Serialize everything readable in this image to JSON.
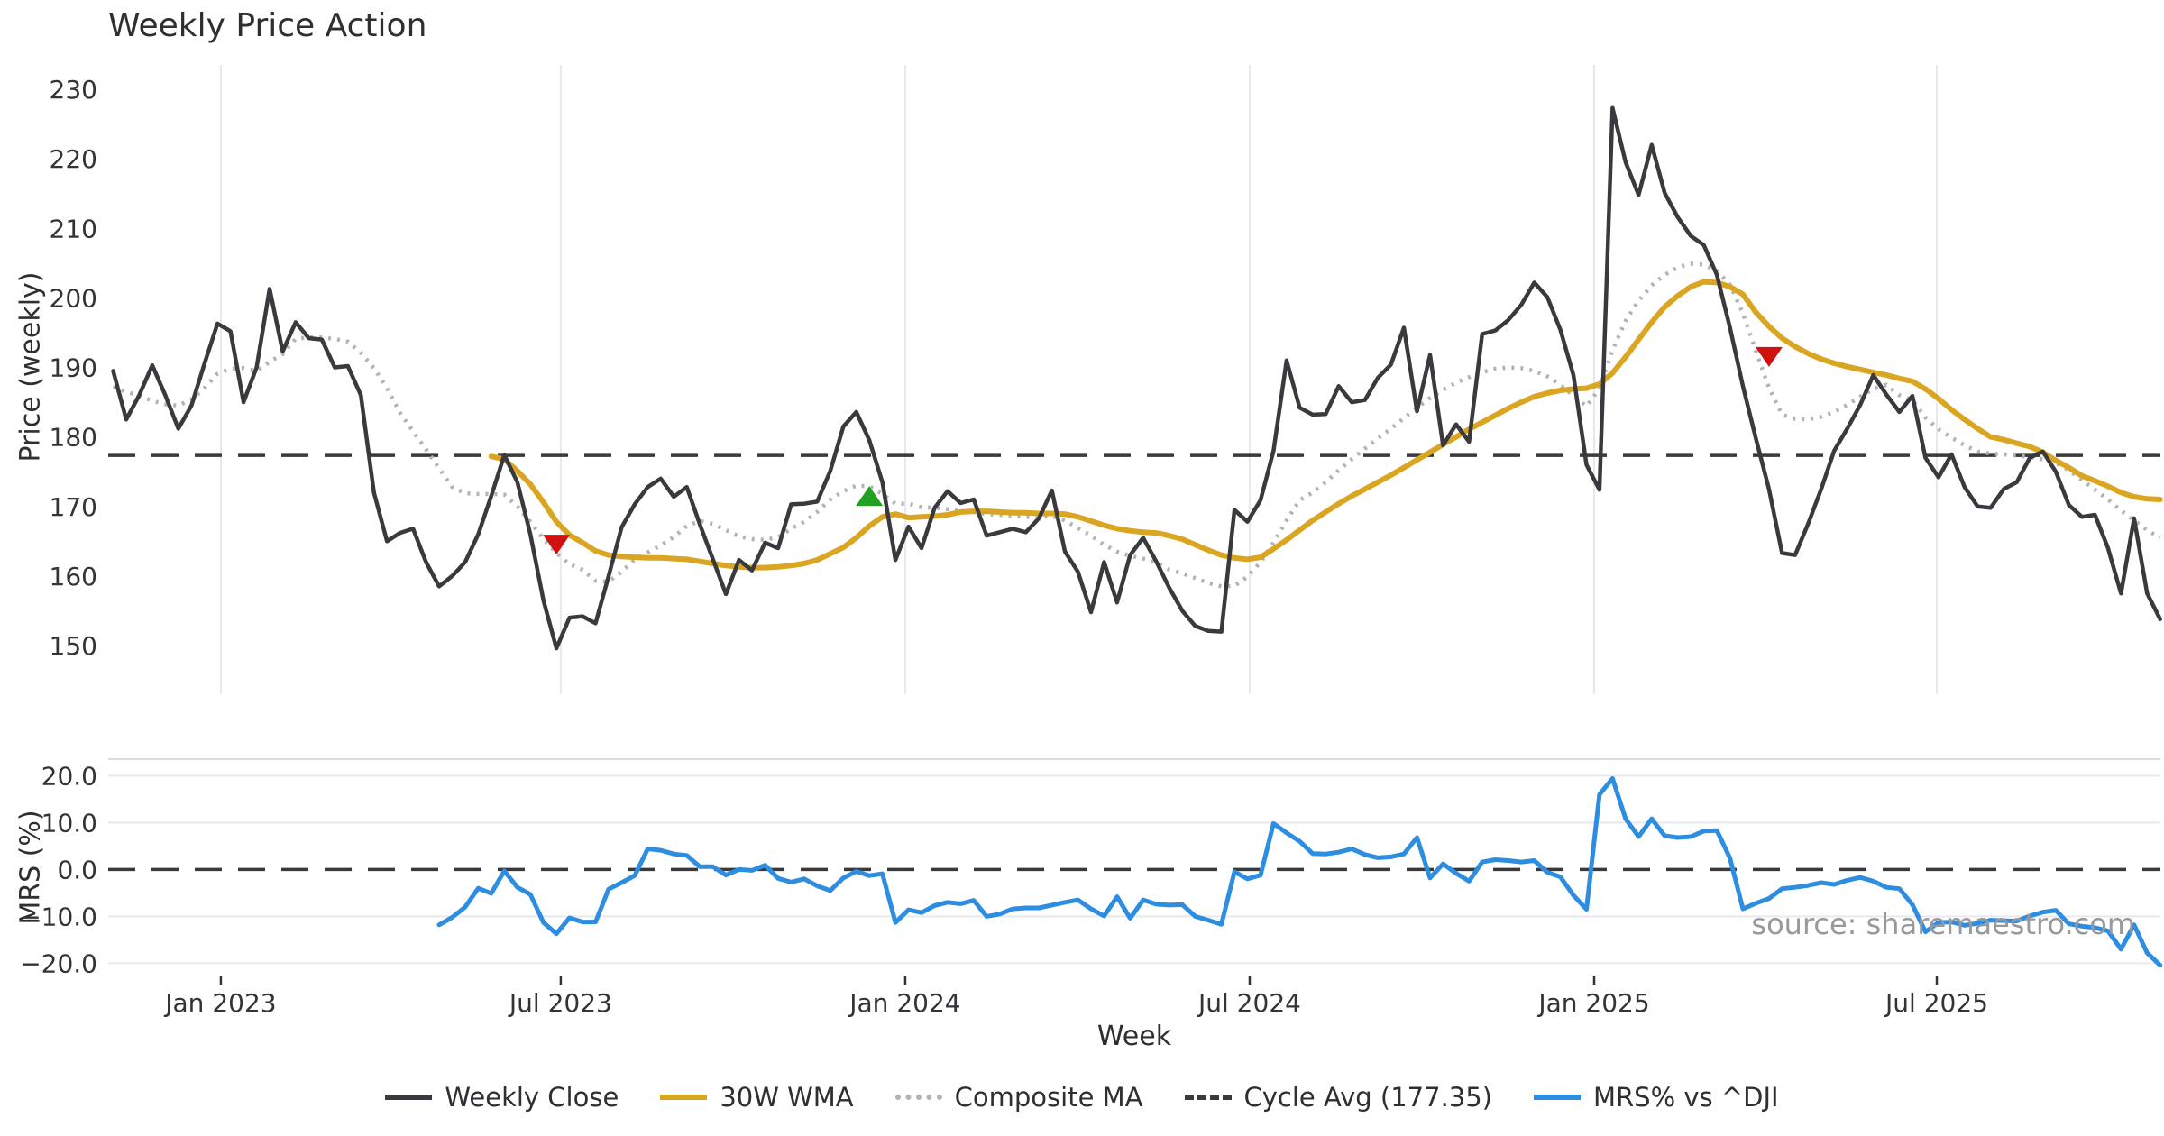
{
  "title": "Weekly Price Action",
  "xlabel": "Week",
  "source_text": "source: sharemaestro.com",
  "price_panel": {
    "ylabel": "Price (weekly)",
    "y_ticks": [
      230,
      220,
      210,
      200,
      190,
      180,
      170,
      160,
      150
    ]
  },
  "mrs_panel": {
    "ylabel": "MRS (%)",
    "y_ticks": [
      {
        "label": "20.0",
        "value": 20
      },
      {
        "label": "10.0",
        "value": 10
      },
      {
        "label": "0.0",
        "value": 0
      },
      {
        "label": "−10.0",
        "value": -10
      },
      {
        "label": "−20.0",
        "value": -20
      }
    ]
  },
  "x_ticks": [
    {
      "label": "Jan 2023",
      "week": 8.26
    },
    {
      "label": "Jul 2023",
      "week": 34.33
    },
    {
      "label": "Jan 2024",
      "week": 60.75
    },
    {
      "label": "Jul 2024",
      "week": 87.17
    },
    {
      "label": "Jan 2025",
      "week": 113.59
    },
    {
      "label": "Jul 2025",
      "week": 139.87
    }
  ],
  "legend": [
    {
      "label": "Weekly Close",
      "style": "solid",
      "color": "#3a3a3e"
    },
    {
      "label": "30W WMA",
      "style": "solid",
      "color": "#daa520"
    },
    {
      "label": "Composite MA",
      "style": "dotted",
      "color": "#b3b3b3"
    },
    {
      "label": "Cycle Avg (177.35)",
      "style": "dashed",
      "color": "#3a3a3a"
    },
    {
      "label": "MRS% vs ^DJI",
      "style": "solid",
      "color": "#2d8de0"
    }
  ],
  "colors": {
    "close": "#3a3a3e",
    "wma": "#daa520",
    "composite": "#b3b3b3",
    "cycle_avg": "#3a3a3a",
    "mrs": "#2d8de0",
    "grid": "#e9e9ed",
    "spine": "#dadade",
    "marker_sell": "#cf1110",
    "marker_buy": "#21a121",
    "tick_text": "#333338"
  },
  "chart_data": {
    "type": "line",
    "x_unit": "week_index",
    "n_weeks": 158,
    "price_ylim": [
      143.0,
      233.8
    ],
    "mrs_ylim": [
      -22.7,
      23.5
    ],
    "cycle_avg_value": 177.35,
    "mrs_zero_line": 0,
    "series": [
      {
        "name": "Weekly Close",
        "panel": "price",
        "style": "solid",
        "color": "#3a3a3e",
        "width": 4.5,
        "start_week": 0,
        "values": [
          189.5,
          182.5,
          186.0,
          190.3,
          186.0,
          181.2,
          184.5,
          190.5,
          196.3,
          195.2,
          185.0,
          190.0,
          201.3,
          192.3,
          196.5,
          194.2,
          194.0,
          190.0,
          190.2,
          186.0,
          172.0,
          165.0,
          166.2,
          166.8,
          162.0,
          158.5,
          160.0,
          162.0,
          166.0,
          171.5,
          177.4,
          173.5,
          166.0,
          156.5,
          149.6,
          154.0,
          154.2,
          153.2,
          160.0,
          167.0,
          170.3,
          172.8,
          174.0,
          171.4,
          172.8,
          167.4,
          162.4,
          157.4,
          162.3,
          160.8,
          164.8,
          164.0,
          170.3,
          170.4,
          170.7,
          175.1,
          181.5,
          183.6,
          179.5,
          173.5,
          162.3,
          167.1,
          164.0,
          169.8,
          172.2,
          170.5,
          171.0,
          165.8,
          166.3,
          166.8,
          166.3,
          168.3,
          172.3,
          163.5,
          160.6,
          154.8,
          162.0,
          156.2,
          163.0,
          165.5,
          162.1,
          158.3,
          155.0,
          152.8,
          152.1,
          152.0,
          169.5,
          167.8,
          170.9,
          178.0,
          191.0,
          184.2,
          183.2,
          183.3,
          187.3,
          185.0,
          185.3,
          188.5,
          190.4,
          195.7,
          183.7,
          191.8,
          178.8,
          181.8,
          179.3,
          194.8,
          195.3,
          196.8,
          199.0,
          202.2,
          200.1,
          195.4,
          188.9,
          176.0,
          172.4,
          227.3,
          219.5,
          214.8,
          222.0,
          215.1,
          211.6,
          208.9,
          207.6,
          203.3,
          195.8,
          187.3,
          179.7,
          172.5,
          163.3,
          163.0,
          167.5,
          172.5,
          178.0,
          181.2,
          184.6,
          188.9,
          186.1,
          183.6,
          185.9,
          177.0,
          174.2,
          177.5,
          172.8,
          170.0,
          169.8,
          172.5,
          173.5,
          177.0,
          177.9,
          175.0,
          170.2,
          168.5,
          168.8,
          164.0,
          157.5,
          168.3,
          157.5,
          153.8
        ]
      },
      {
        "name": "30W WMA",
        "panel": "price",
        "style": "solid",
        "color": "#daa520",
        "width": 6,
        "start_week": 29,
        "values": [
          177.2,
          176.8,
          175.1,
          173.2,
          170.6,
          167.8,
          165.9,
          164.8,
          163.6,
          163.0,
          162.8,
          162.7,
          162.6,
          162.6,
          162.5,
          162.4,
          162.1,
          161.8,
          161.5,
          161.3,
          161.2,
          161.2,
          161.3,
          161.5,
          161.8,
          162.3,
          163.2,
          164.1,
          165.5,
          167.2,
          168.5,
          168.9,
          168.4,
          168.5,
          168.6,
          168.8,
          169.2,
          169.3,
          169.3,
          169.2,
          169.1,
          169.1,
          169.0,
          169.0,
          168.9,
          168.5,
          167.9,
          167.3,
          166.8,
          166.5,
          166.3,
          166.2,
          165.8,
          165.3,
          164.5,
          163.7,
          163.0,
          162.6,
          162.4,
          162.7,
          163.9,
          165.2,
          166.6,
          168.0,
          169.2,
          170.4,
          171.5,
          172.5,
          173.5,
          174.5,
          175.6,
          176.7,
          177.8,
          178.9,
          180.0,
          181.1,
          182.1,
          183.1,
          184.1,
          185.0,
          185.8,
          186.3,
          186.7,
          186.9,
          187.0,
          187.6,
          189.2,
          191.5,
          194.0,
          196.5,
          198.7,
          200.3,
          201.6,
          202.3,
          202.2,
          201.6,
          200.5,
          197.9,
          195.9,
          194.2,
          193.0,
          192.0,
          191.2,
          190.6,
          190.1,
          189.7,
          189.3,
          188.9,
          188.4,
          188.0,
          186.9,
          185.5,
          183.9,
          182.5,
          181.2,
          180.0,
          179.6,
          179.1,
          178.6,
          177.8,
          176.6,
          175.6,
          174.4,
          173.7,
          172.9,
          172.0,
          171.4,
          171.1,
          171.0
        ]
      },
      {
        "name": "Composite MA",
        "panel": "price",
        "style": "dotted",
        "color": "#b3b3b3",
        "width": 4.5,
        "start_week": 0,
        "values": [
          187.2,
          186.5,
          185.9,
          185.2,
          184.7,
          184.5,
          185.4,
          187.0,
          189.1,
          189.8,
          189.9,
          189.5,
          190.8,
          191.9,
          194.1,
          194.3,
          194.3,
          194.1,
          193.7,
          192.1,
          189.9,
          187.0,
          183.5,
          180.8,
          178.2,
          175.5,
          172.8,
          171.9,
          171.8,
          171.8,
          171.7,
          170.0,
          167.8,
          165.3,
          163.3,
          161.7,
          160.9,
          159.3,
          159.2,
          160.6,
          162.4,
          163.4,
          164.4,
          165.6,
          167.2,
          167.9,
          167.5,
          166.6,
          165.7,
          165.3,
          165.2,
          165.6,
          166.8,
          167.8,
          169.2,
          171.0,
          172.2,
          173.0,
          172.9,
          171.8,
          170.4,
          170.4,
          169.9,
          169.8,
          169.6,
          169.3,
          169.2,
          168.9,
          168.8,
          168.6,
          168.5,
          168.5,
          168.6,
          168.0,
          166.9,
          165.8,
          164.5,
          163.5,
          162.9,
          162.5,
          161.9,
          160.9,
          160.4,
          159.7,
          159.0,
          158.5,
          158.6,
          159.9,
          162.0,
          164.8,
          168.0,
          170.9,
          172.0,
          173.5,
          175.2,
          176.8,
          178.3,
          179.8,
          181.2,
          182.7,
          184.2,
          185.6,
          186.8,
          187.8,
          188.6,
          189.3,
          189.8,
          190.0,
          189.9,
          189.5,
          188.7,
          187.5,
          185.9,
          184.4,
          187.0,
          192.5,
          196.7,
          199.6,
          201.8,
          203.3,
          204.4,
          204.9,
          204.8,
          203.9,
          201.9,
          197.8,
          192.3,
          187.1,
          183.2,
          182.6,
          182.5,
          182.9,
          183.6,
          184.6,
          185.8,
          186.9,
          187.5,
          186.0,
          185.3,
          182.8,
          181.1,
          179.9,
          178.8,
          177.9,
          177.6,
          177.5,
          177.3,
          177.1,
          176.8,
          176.3,
          175.2,
          173.8,
          172.4,
          171.0,
          169.4,
          168.0,
          166.6,
          165.5
        ]
      },
      {
        "name": "Cycle Avg (177.35)",
        "panel": "price",
        "style": "dashed-hline",
        "color": "#3a3a3a",
        "width": 3.5,
        "value": 177.35
      },
      {
        "name": "MRS% vs ^DJI",
        "panel": "mrs",
        "style": "solid",
        "color": "#2d8de0",
        "width": 5,
        "start_week": 25,
        "values": [
          -11.8,
          -10.2,
          -8.0,
          -4.0,
          -5.1,
          -0.3,
          -3.8,
          -5.3,
          -11.3,
          -13.7,
          -10.3,
          -11.2,
          -11.2,
          -4.2,
          -2.8,
          -1.3,
          4.4,
          4.1,
          3.3,
          3.0,
          0.6,
          0.6,
          -1.2,
          0.0,
          -0.2,
          0.9,
          -1.9,
          -2.7,
          -2.0,
          -3.5,
          -4.5,
          -1.8,
          -0.4,
          -1.3,
          -0.9,
          -11.3,
          -8.6,
          -9.2,
          -7.7,
          -7.0,
          -7.3,
          -6.6,
          -10.0,
          -9.5,
          -8.4,
          -8.2,
          -8.2,
          -7.6,
          -7.0,
          -6.5,
          -8.4,
          -9.9,
          -5.8,
          -10.4,
          -6.5,
          -7.4,
          -7.6,
          -7.5,
          -10.0,
          -10.8,
          -11.7,
          -0.5,
          -2.0,
          -1.2,
          9.8,
          7.8,
          6.0,
          3.4,
          3.3,
          3.7,
          4.4,
          3.2,
          2.5,
          2.7,
          3.3,
          6.8,
          -1.8,
          1.2,
          -0.8,
          -2.5,
          1.6,
          2.1,
          1.9,
          1.6,
          1.9,
          -0.6,
          -1.6,
          -5.5,
          -8.5,
          16.0,
          19.4,
          10.8,
          7.0,
          10.8,
          7.2,
          6.8,
          7.0,
          8.2,
          8.3,
          2.5,
          -8.4,
          -7.2,
          -6.2,
          -4.1,
          -3.8,
          -3.4,
          -2.8,
          -3.2,
          -2.3,
          -1.7,
          -2.5,
          -3.8,
          -4.1,
          -7.5,
          -13.3,
          -11.3,
          -11.2,
          -11.9,
          -11.5,
          -10.8,
          -10.9,
          -11.0,
          -9.9,
          -9.1,
          -8.7,
          -11.6,
          -12.1,
          -12.4,
          -13.1,
          -17.0,
          -11.8,
          -17.8,
          -20.4
        ]
      }
    ],
    "markers": [
      {
        "name": "sell-signal-marker",
        "shape": "triangle-down",
        "color": "#cf1110",
        "week": 34,
        "price": 164.5
      },
      {
        "name": "buy-signal-marker",
        "shape": "triangle-up",
        "color": "#21a121",
        "week": 58,
        "price": 171.5
      },
      {
        "name": "sell-signal-marker",
        "shape": "triangle-down",
        "color": "#cf1110",
        "week": 127,
        "price": 191.5
      }
    ]
  }
}
